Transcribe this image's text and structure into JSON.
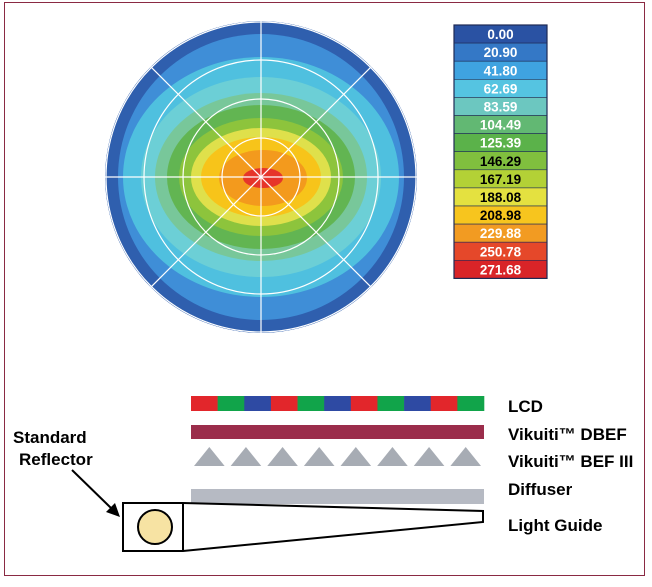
{
  "colors": {
    "frame_border": "#8a2a43",
    "grid": "#ffffff",
    "dbef": "#9b2d4b",
    "bef_prism": "#a7acb4",
    "diffuser": "#b6bac3",
    "guide_stroke": "#000000",
    "lamp_fill": "#f7e3a3",
    "lcd_red": "#e2262b",
    "lcd_green": "#11a44a",
    "lcd_blue": "#2e4aa3"
  },
  "polar_plot": {
    "zones": [
      {
        "level": 0,
        "color": "#2f5fae"
      },
      {
        "level": 1,
        "color": "#3f8ed7"
      },
      {
        "level": 2,
        "color": "#4fc0df"
      },
      {
        "level": 3,
        "color": "#6ccfd6"
      },
      {
        "level": 4,
        "color": "#78c79a"
      },
      {
        "level": 5,
        "color": "#62b552"
      },
      {
        "level": 6,
        "color": "#8dc43c"
      },
      {
        "level": 7,
        "color": "#dfe04b"
      },
      {
        "level": 8,
        "color": "#f7c41a"
      },
      {
        "level": 9,
        "color": "#f39a1d"
      },
      {
        "level": 10,
        "color": "#e6352a"
      }
    ]
  },
  "legend": {
    "items": [
      {
        "value": "0.00",
        "color": "#2a52a3",
        "text_color": "#ffffff"
      },
      {
        "value": "20.90",
        "color": "#3478c6",
        "text_color": "#ffffff"
      },
      {
        "value": "41.80",
        "color": "#3fa3e0",
        "text_color": "#ffffff"
      },
      {
        "value": "62.69",
        "color": "#55c4e1",
        "text_color": "#ffffff"
      },
      {
        "value": "83.59",
        "color": "#6cc7c0",
        "text_color": "#ffffff"
      },
      {
        "value": "104.49",
        "color": "#62b873",
        "text_color": "#ffffff"
      },
      {
        "value": "125.39",
        "color": "#5bb24a",
        "text_color": "#ffffff"
      },
      {
        "value": "146.29",
        "color": "#80bf3e",
        "text_color": "#000000"
      },
      {
        "value": "167.19",
        "color": "#b3d136",
        "text_color": "#000000"
      },
      {
        "value": "188.08",
        "color": "#e4e140",
        "text_color": "#000000"
      },
      {
        "value": "208.98",
        "color": "#f7c51e",
        "text_color": "#000000"
      },
      {
        "value": "229.88",
        "color": "#f29b22",
        "text_color": "#ffffff"
      },
      {
        "value": "250.78",
        "color": "#e5482a",
        "text_color": "#ffffff"
      },
      {
        "value": "271.68",
        "color": "#d92428",
        "text_color": "#ffffff"
      }
    ]
  },
  "stack": {
    "lcd_label": "LCD",
    "dbef_label": "Vikuiti™ DBEF",
    "bef_label": "Vikuiti™ BEF III",
    "diffuser_label": "Diffuser",
    "light_guide_label": "Light Guide",
    "lcd_pattern": [
      "red",
      "green",
      "blue",
      "red",
      "green",
      "blue",
      "red",
      "green",
      "blue",
      "red",
      "green"
    ]
  },
  "reflector": {
    "line1": "Standard",
    "line2": "Reflector"
  }
}
